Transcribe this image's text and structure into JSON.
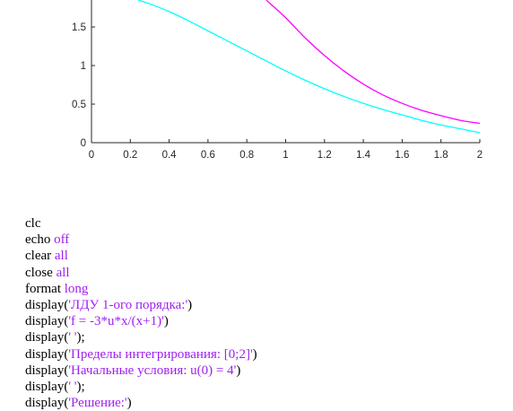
{
  "chart_data": {
    "type": "line",
    "xlim": [
      0,
      2
    ],
    "ylim": [
      0,
      1.85
    ],
    "x_ticks": [
      "0",
      "0.2",
      "0.4",
      "0.6",
      "0.8",
      "1",
      "1.2",
      "1.4",
      "1.6",
      "1.8",
      "2"
    ],
    "y_ticks": [
      "0",
      "0.5",
      "1",
      "1.5"
    ],
    "grid": false,
    "series": [
      {
        "color": "#ff00ff",
        "x": [
          0.9,
          1.0,
          1.1,
          1.2,
          1.3,
          1.4,
          1.5,
          1.6,
          1.7,
          1.8,
          1.9,
          2.0
        ],
        "y": [
          1.85,
          1.62,
          1.36,
          1.13,
          0.93,
          0.76,
          0.62,
          0.51,
          0.42,
          0.35,
          0.29,
          0.25
        ]
      },
      {
        "color": "#00ffff",
        "x": [
          0.24,
          0.3,
          0.4,
          0.5,
          0.6,
          0.7,
          0.8,
          0.9,
          1.0,
          1.1,
          1.2,
          1.3,
          1.4,
          1.5,
          1.6,
          1.7,
          1.8,
          1.9,
          2.0
        ],
        "y": [
          1.85,
          1.8,
          1.7,
          1.58,
          1.45,
          1.32,
          1.19,
          1.06,
          0.93,
          0.81,
          0.7,
          0.6,
          0.51,
          0.43,
          0.36,
          0.29,
          0.23,
          0.18,
          0.13
        ]
      }
    ]
  },
  "code": [
    [
      {
        "t": "clc"
      }
    ],
    [
      {
        "t": "echo "
      },
      {
        "t": "off",
        "kw": true
      }
    ],
    [
      {
        "t": "clear "
      },
      {
        "t": "all",
        "kw": true
      }
    ],
    [
      {
        "t": "close "
      },
      {
        "t": "all",
        "kw": true
      }
    ],
    [
      {
        "t": "format "
      },
      {
        "t": "long",
        "kw": true
      }
    ],
    [
      {
        "t": "display("
      },
      {
        "t": "'ЛДУ 1-ого порядка:'",
        "kw": true
      },
      {
        "t": ")"
      }
    ],
    [
      {
        "t": "display("
      },
      {
        "t": "'f = -3*u*x/(x+1)'",
        "kw": true
      },
      {
        "t": ")"
      }
    ],
    [
      {
        "t": "display("
      },
      {
        "t": "' '",
        "kw": true
      },
      {
        "t": ");"
      }
    ],
    [
      {
        "t": "display("
      },
      {
        "t": "'Пределы интегрирования: [0;2]'",
        "kw": true
      },
      {
        "t": ")"
      }
    ],
    [
      {
        "t": "display("
      },
      {
        "t": "'Начальные условия: u(0) = 4'",
        "kw": true
      },
      {
        "t": ")"
      }
    ],
    [
      {
        "t": "display("
      },
      {
        "t": "' '",
        "kw": true
      },
      {
        "t": ");"
      }
    ],
    [
      {
        "t": "display("
      },
      {
        "t": "'Решение:'",
        "kw": true
      },
      {
        "t": ")"
      }
    ]
  ]
}
